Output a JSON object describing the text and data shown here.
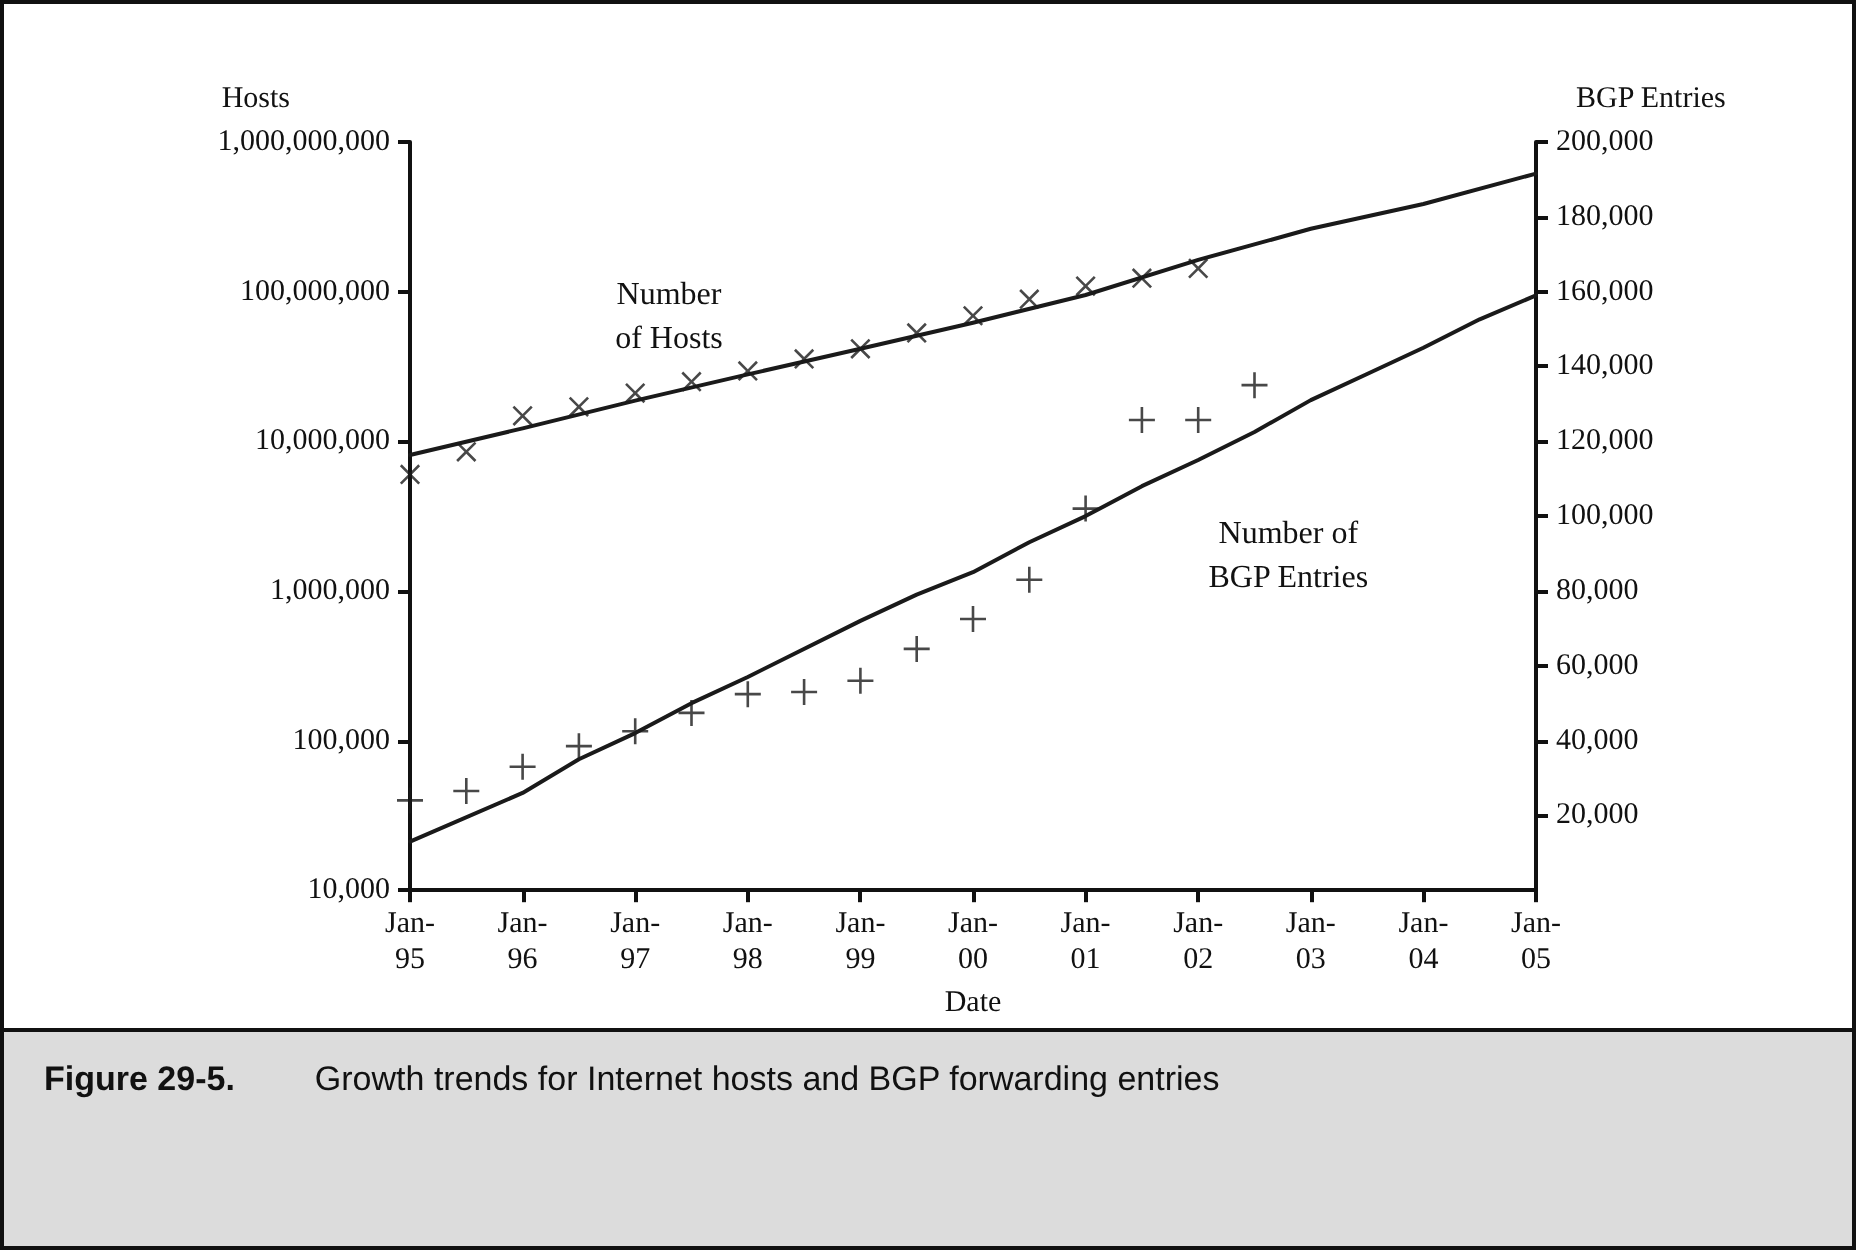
{
  "chart_data": {
    "type": "line",
    "ylabel": "Hosts",
    "y2label": "BGP Entries",
    "xlabel": "Date",
    "annotations": [
      "Figure 29-5.",
      "Growth trends for Internet hosts and BGP forwarding entries"
    ],
    "log": "y",
    "grid": false,
    "legend": false,
    "line_style": "solid",
    "xlim": [
      "1995-01",
      "2005-01"
    ],
    "xticks": [
      {
        "value": "1995-01",
        "label": "Jan-\n95"
      },
      {
        "value": "1996-01",
        "label": "Jan-\n96"
      },
      {
        "value": "1997-01",
        "label": "Jan-\n97"
      },
      {
        "value": "1998-01",
        "label": "Jan-\n98"
      },
      {
        "value": "1999-01",
        "label": "Jan-\n99"
      },
      {
        "value": "2000-01",
        "label": "Jan-\n00"
      },
      {
        "value": "2001-01",
        "label": "Jan-\n01"
      },
      {
        "value": "2002-01",
        "label": "Jan-\n02"
      },
      {
        "value": "2003-01",
        "label": "Jan-\n03"
      },
      {
        "value": "2004-01",
        "label": "Jan-\n04"
      },
      {
        "value": "2005-01",
        "label": "Jan-\n05"
      }
    ],
    "ylim": [
      10000,
      1000000000
    ],
    "yticks": [
      {
        "value": 10000,
        "label": "10,000"
      },
      {
        "value": 100000,
        "label": "100,000"
      },
      {
        "value": 1000000,
        "label": "1,000,000"
      },
      {
        "value": 10000000,
        "label": "10,000,000"
      },
      {
        "value": 100000000,
        "label": "100,000,000"
      },
      {
        "value": 1000000000,
        "label": "1,000,000,000"
      }
    ],
    "y2lim": [
      0,
      200000
    ],
    "y2ticks": [
      {
        "value": 20000,
        "label": "20,000"
      },
      {
        "value": 40000,
        "label": "40,000"
      },
      {
        "value": 60000,
        "label": "60,000"
      },
      {
        "value": 80000,
        "label": "80,000"
      },
      {
        "value": 100000,
        "label": "100,000"
      },
      {
        "value": 120000,
        "label": "120,000"
      },
      {
        "value": 140000,
        "label": "140,000"
      },
      {
        "value": 160000,
        "label": "160,000"
      },
      {
        "value": 180000,
        "label": "180,000"
      },
      {
        "value": 200000,
        "label": "200,000"
      }
    ],
    "series": [
      {
        "name": "Number\nof Hosts",
        "color": "#1a1a1a",
        "marker": "none",
        "x": [
          "1995-01",
          "1996-01",
          "1997-01",
          "1998-01",
          "1999-01",
          "2000-01",
          "2001-01",
          "2002-01",
          "2003-01",
          "2004-01",
          "2005-01"
        ],
        "values": [
          8100000,
          12200000,
          18700000,
          28000000,
          41500000,
          62000000,
          95000000,
          163000000,
          263000000,
          385000000,
          615000000
        ]
      },
      {
        "type": "scatter",
        "color": "#1a1a1a",
        "marker": "cross",
        "x": [
          "1995-01",
          "1995-07",
          "1996-01",
          "1996-07",
          "1997-01",
          "1997-07",
          "1998-01",
          "1998-07",
          "1999-01",
          "1999-07",
          "2000-01",
          "2000-07",
          "2001-01",
          "2001-07",
          "2002-01"
        ],
        "values": [
          6000000,
          8500000,
          14800000,
          17000000,
          21000000,
          25000000,
          29500000,
          35500000,
          41500000,
          53000000,
          69000000,
          89000000,
          109000000,
          123000000,
          143000000
        ]
      },
      {
        "name": "Number of\nBGP Entries",
        "axis": "y2",
        "color": "#1a1a1a",
        "marker": "none",
        "x": [
          "1995-01",
          "1996-01",
          "1996-07",
          "1997-01",
          "1997-07",
          "1998-01",
          "1999-01",
          "1999-07",
          "2000-01",
          "2000-07",
          "2001-01",
          "2001-07",
          "2002-01",
          "2002-07",
          "2003-01",
          "2003-07",
          "2004-01",
          "2004-07",
          "2005-01"
        ],
        "values": [
          13000,
          26000,
          35000,
          42000,
          50000,
          57000,
          72000,
          79000,
          85000,
          93000,
          100000,
          108000,
          115000,
          122500,
          131000,
          138000,
          145000,
          152600,
          159000
        ]
      },
      {
        "type": "scatter",
        "axis": "y2",
        "color": "#1a1a1a",
        "marker": "cross",
        "x": [
          "1995-01",
          "1995-07",
          "1996-01",
          "1996-07",
          "1997-01",
          "1997-07",
          "1998-01",
          "1998-07",
          "1999-01",
          "1999-07",
          "2000-01",
          "2000-07",
          "2001-01",
          "2001-07",
          "2002-01",
          "2002-07"
        ],
        "values": [
          24000,
          26500,
          33000,
          38500,
          42500,
          47400,
          52400,
          53000,
          56000,
          64500,
          72500,
          83000,
          102000,
          125700,
          125700,
          135000
        ]
      }
    ]
  }
}
